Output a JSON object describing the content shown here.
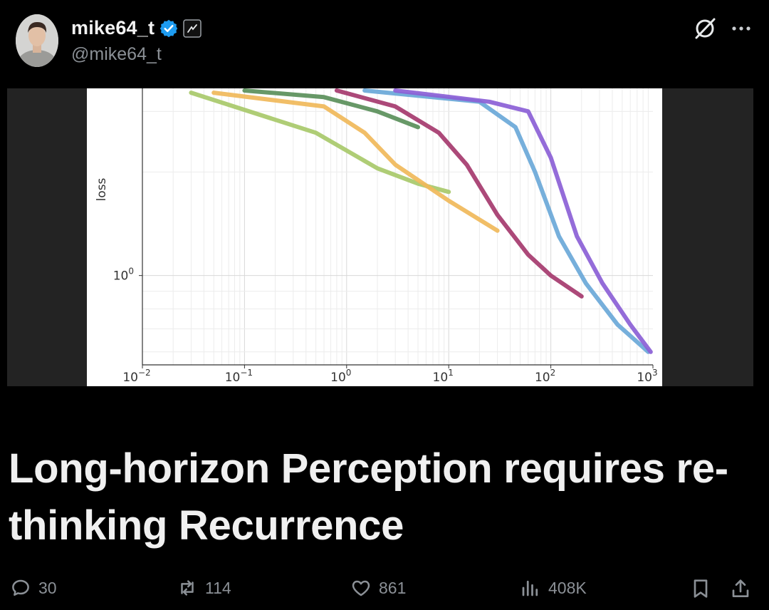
{
  "post": {
    "display_name": "mike64_t",
    "handle": "@mike64_t",
    "title": "Long-horizon Perception requires re-thinking Recurrence",
    "icons": {
      "verified": "verified-badge-icon",
      "affiliate": "affiliate-badge-icon",
      "grok": "grok-icon",
      "more": "more-icon"
    }
  },
  "actions": {
    "replies": "30",
    "reposts": "114",
    "likes": "861",
    "views": "408K"
  },
  "colors": {
    "background": "#000000",
    "verified_blue": "#1d9bf0",
    "muted_text": "#8b9096"
  },
  "chart_data": {
    "type": "line",
    "ylabel": "loss",
    "xscale": "log",
    "yscale": "log",
    "xlim": [
      0.01,
      1000
    ],
    "ylim": [
      0.55,
      3.5
    ],
    "x_ticks": [
      "10^-2",
      "10^-1",
      "10^0",
      "10^1",
      "10^2",
      "10^3"
    ],
    "y_ticks": [
      "10^0"
    ],
    "grid": true,
    "series": [
      {
        "color": "#a8c96a",
        "points": [
          [
            0.03,
            3.4
          ],
          [
            0.5,
            2.6
          ],
          [
            2,
            2.05
          ],
          [
            5,
            1.85
          ],
          [
            10,
            1.75
          ]
        ]
      },
      {
        "color": "#f0b85a",
        "points": [
          [
            0.05,
            3.4
          ],
          [
            0.6,
            3.1
          ],
          [
            1.5,
            2.6
          ],
          [
            3,
            2.1
          ],
          [
            10,
            1.65
          ],
          [
            30,
            1.35
          ]
        ]
      },
      {
        "color": "#5a8f5a",
        "points": [
          [
            0.1,
            3.45
          ],
          [
            0.6,
            3.3
          ],
          [
            2,
            3.0
          ],
          [
            5,
            2.7
          ]
        ]
      },
      {
        "color": "#a53a6e",
        "points": [
          [
            0.8,
            3.45
          ],
          [
            3,
            3.1
          ],
          [
            8,
            2.6
          ],
          [
            15,
            2.1
          ],
          [
            30,
            1.5
          ],
          [
            60,
            1.15
          ],
          [
            100,
            1.0
          ],
          [
            200,
            0.87
          ]
        ]
      },
      {
        "color": "#6aa8d8",
        "points": [
          [
            1.5,
            3.45
          ],
          [
            20,
            3.2
          ],
          [
            45,
            2.7
          ],
          [
            70,
            2.0
          ],
          [
            120,
            1.3
          ],
          [
            220,
            0.95
          ],
          [
            450,
            0.72
          ],
          [
            900,
            0.6
          ]
        ]
      },
      {
        "color": "#8b5fd6",
        "points": [
          [
            3,
            3.45
          ],
          [
            25,
            3.2
          ],
          [
            60,
            3.0
          ],
          [
            100,
            2.2
          ],
          [
            180,
            1.3
          ],
          [
            320,
            0.95
          ],
          [
            600,
            0.72
          ],
          [
            950,
            0.6
          ]
        ]
      }
    ]
  }
}
